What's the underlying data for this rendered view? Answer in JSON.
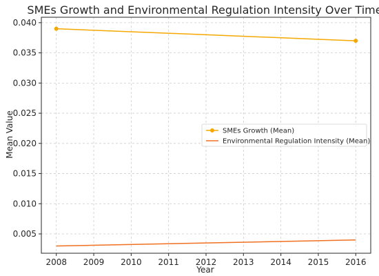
{
  "chart_data": {
    "type": "line",
    "title": "SMEs Growth and Environmental Regulation Intensity Over Time",
    "xlabel": "Year",
    "ylabel": "Mean Value",
    "x": [
      2008,
      2016
    ],
    "xticks": [
      "2008",
      "2009",
      "2010",
      "2011",
      "2012",
      "2013",
      "2014",
      "2015",
      "2016"
    ],
    "xlim": [
      2007.6,
      2016.4
    ],
    "yticks": [
      "0.005",
      "0.010",
      "0.015",
      "0.020",
      "0.025",
      "0.030",
      "0.035",
      "0.040"
    ],
    "ylim": [
      0.0018,
      0.0409
    ],
    "grid": true,
    "legend_position": "center-right",
    "series": [
      {
        "name": "SMEs Growth (Mean)",
        "values": [
          0.039,
          0.037
        ],
        "color": "#f5a800",
        "marker": "circle"
      },
      {
        "name": "Environmental Regulation Intensity (Mean)",
        "values": [
          0.003,
          0.004
        ],
        "color": "#f07020",
        "marker": "none"
      }
    ]
  }
}
